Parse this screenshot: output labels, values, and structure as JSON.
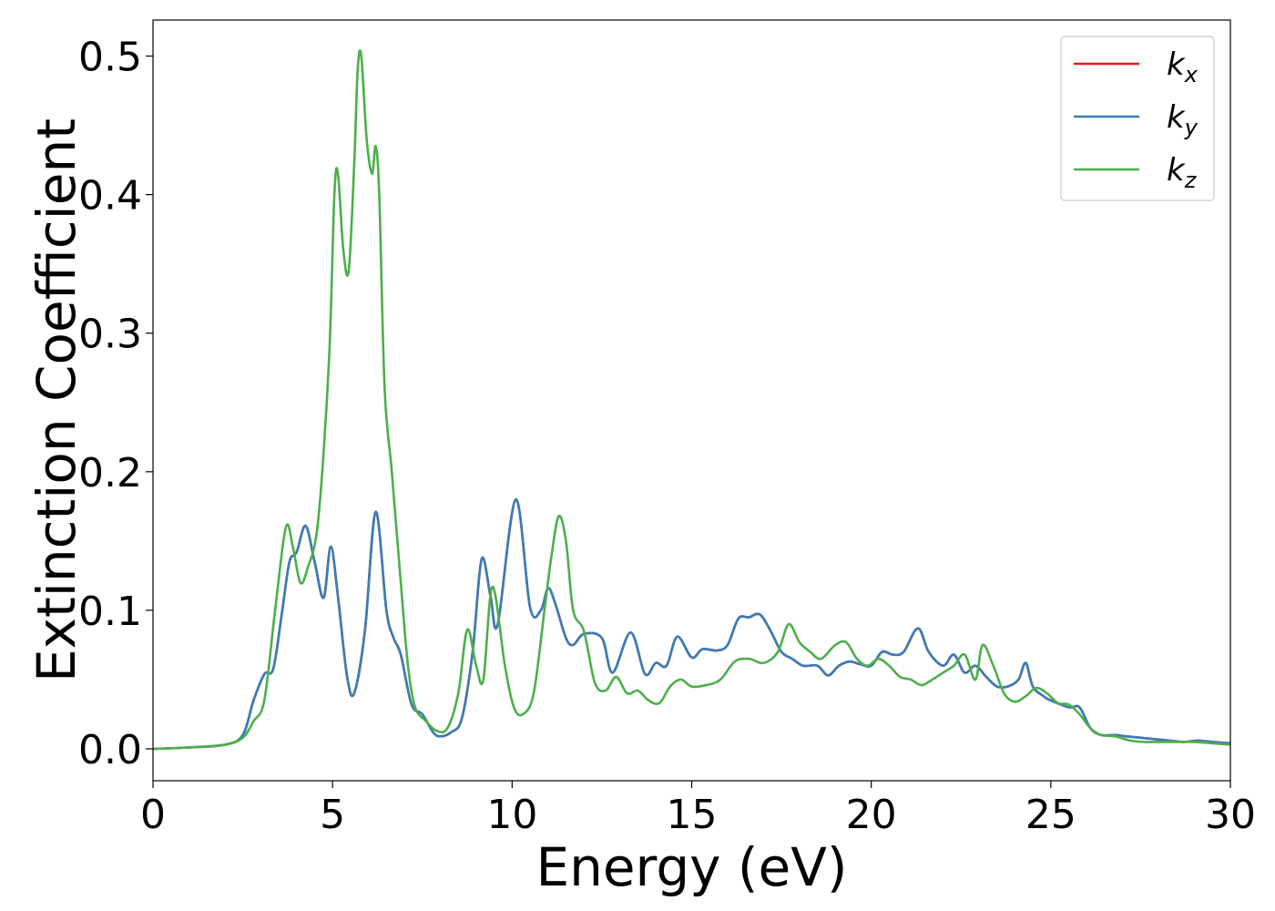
{
  "chart_data": {
    "type": "line",
    "title": "",
    "xlabel": "Energy (eV)",
    "ylabel": "Extinction Coefficient",
    "xlim": [
      0,
      30
    ],
    "ylim": [
      -0.023,
      0.526
    ],
    "xticks": [
      0,
      5,
      10,
      15,
      20,
      25,
      30
    ],
    "xtick_labels": [
      "0",
      "5",
      "10",
      "15",
      "20",
      "25",
      "30"
    ],
    "yticks": [
      0.0,
      0.1,
      0.2,
      0.3,
      0.4,
      0.5
    ],
    "ytick_labels": [
      "0.0",
      "0.1",
      "0.2",
      "0.3",
      "0.4",
      "0.5"
    ],
    "grid": false,
    "legend_position": "top-right",
    "series": [
      {
        "name": "k_x",
        "label_main": "k",
        "label_sub": "x",
        "color": "#e41a1c",
        "x": [
          0,
          1,
          2,
          2.5,
          2.8,
          3.1,
          3.35,
          3.6,
          3.8,
          4.0,
          4.25,
          4.5,
          4.75,
          4.95,
          5.15,
          5.4,
          5.6,
          5.9,
          6.2,
          6.5,
          6.7,
          6.9,
          7.2,
          7.5,
          7.8,
          8.0,
          8.3,
          8.6,
          8.9,
          9.15,
          9.4,
          9.6,
          10.1,
          10.5,
          10.8,
          11.0,
          11.2,
          11.5,
          11.7,
          12.0,
          12.5,
          12.8,
          13.3,
          13.7,
          14.0,
          14.3,
          14.6,
          15.0,
          15.3,
          15.7,
          16.0,
          16.3,
          16.6,
          16.9,
          17.2,
          17.5,
          17.8,
          18.1,
          18.5,
          18.8,
          19.1,
          19.4,
          19.7,
          20.0,
          20.3,
          20.6,
          20.9,
          21.3,
          21.6,
          22.0,
          22.3,
          22.6,
          22.9,
          23.2,
          23.5,
          23.8,
          24.1,
          24.3,
          24.5,
          24.8,
          25.0,
          25.5,
          25.8,
          26.1,
          26.4,
          26.8,
          27.1,
          27.5,
          27.9,
          28.3,
          28.7,
          29.1,
          29.5,
          30
        ],
        "values": [
          0,
          0.001,
          0.003,
          0.01,
          0.035,
          0.054,
          0.058,
          0.1,
          0.135,
          0.142,
          0.161,
          0.135,
          0.109,
          0.146,
          0.11,
          0.053,
          0.04,
          0.085,
          0.171,
          0.1,
          0.08,
          0.068,
          0.032,
          0.025,
          0.012,
          0.009,
          0.012,
          0.022,
          0.07,
          0.137,
          0.11,
          0.09,
          0.18,
          0.102,
          0.1,
          0.116,
          0.105,
          0.08,
          0.075,
          0.083,
          0.08,
          0.055,
          0.084,
          0.054,
          0.062,
          0.06,
          0.081,
          0.066,
          0.072,
          0.071,
          0.075,
          0.094,
          0.095,
          0.097,
          0.085,
          0.07,
          0.065,
          0.06,
          0.06,
          0.053,
          0.06,
          0.063,
          0.061,
          0.06,
          0.07,
          0.068,
          0.07,
          0.087,
          0.07,
          0.06,
          0.068,
          0.055,
          0.06,
          0.052,
          0.045,
          0.045,
          0.05,
          0.062,
          0.045,
          0.038,
          0.035,
          0.03,
          0.03,
          0.015,
          0.01,
          0.01,
          0.009,
          0.008,
          0.007,
          0.006,
          0.005,
          0.006,
          0.005,
          0.004
        ]
      },
      {
        "name": "k_y",
        "label_main": "k",
        "label_sub": "y",
        "color": "#377eb8",
        "x": [
          0,
          1,
          2,
          2.5,
          2.8,
          3.1,
          3.35,
          3.6,
          3.8,
          4.0,
          4.25,
          4.5,
          4.75,
          4.95,
          5.15,
          5.4,
          5.6,
          5.9,
          6.2,
          6.5,
          6.7,
          6.9,
          7.2,
          7.5,
          7.8,
          8.0,
          8.3,
          8.6,
          8.9,
          9.15,
          9.4,
          9.6,
          10.1,
          10.5,
          10.8,
          11.0,
          11.2,
          11.5,
          11.7,
          12.0,
          12.5,
          12.8,
          13.3,
          13.7,
          14.0,
          14.3,
          14.6,
          15.0,
          15.3,
          15.7,
          16.0,
          16.3,
          16.6,
          16.9,
          17.2,
          17.5,
          17.8,
          18.1,
          18.5,
          18.8,
          19.1,
          19.4,
          19.7,
          20.0,
          20.3,
          20.6,
          20.9,
          21.3,
          21.6,
          22.0,
          22.3,
          22.6,
          22.9,
          23.2,
          23.5,
          23.8,
          24.1,
          24.3,
          24.5,
          24.8,
          25.0,
          25.5,
          25.8,
          26.1,
          26.4,
          26.8,
          27.1,
          27.5,
          27.9,
          28.3,
          28.7,
          29.1,
          29.5,
          30
        ],
        "values": [
          0,
          0.001,
          0.003,
          0.01,
          0.035,
          0.054,
          0.058,
          0.1,
          0.135,
          0.142,
          0.161,
          0.135,
          0.109,
          0.146,
          0.11,
          0.053,
          0.04,
          0.085,
          0.171,
          0.1,
          0.08,
          0.068,
          0.032,
          0.025,
          0.012,
          0.009,
          0.012,
          0.022,
          0.07,
          0.137,
          0.11,
          0.09,
          0.18,
          0.102,
          0.1,
          0.116,
          0.105,
          0.08,
          0.075,
          0.083,
          0.08,
          0.055,
          0.084,
          0.054,
          0.062,
          0.06,
          0.081,
          0.066,
          0.072,
          0.071,
          0.075,
          0.094,
          0.095,
          0.097,
          0.085,
          0.07,
          0.065,
          0.06,
          0.06,
          0.053,
          0.06,
          0.063,
          0.061,
          0.06,
          0.07,
          0.068,
          0.07,
          0.087,
          0.07,
          0.06,
          0.068,
          0.055,
          0.06,
          0.052,
          0.045,
          0.045,
          0.05,
          0.062,
          0.045,
          0.038,
          0.035,
          0.03,
          0.03,
          0.015,
          0.01,
          0.01,
          0.009,
          0.008,
          0.007,
          0.006,
          0.005,
          0.006,
          0.005,
          0.004
        ]
      },
      {
        "name": "k_z",
        "label_main": "k",
        "label_sub": "z",
        "color": "#4daf4a",
        "x": [
          0,
          1,
          2,
          2.5,
          2.8,
          3.1,
          3.4,
          3.7,
          3.9,
          4.1,
          4.3,
          4.6,
          4.9,
          5.05,
          5.15,
          5.3,
          5.45,
          5.6,
          5.7,
          5.8,
          5.95,
          6.1,
          6.2,
          6.3,
          6.45,
          6.65,
          6.9,
          7.1,
          7.3,
          7.6,
          7.9,
          8.2,
          8.5,
          8.75,
          9.0,
          9.2,
          9.45,
          9.8,
          10.05,
          10.3,
          10.6,
          10.9,
          11.1,
          11.3,
          11.5,
          11.7,
          12.0,
          12.3,
          12.6,
          12.9,
          13.2,
          13.5,
          13.8,
          14.1,
          14.4,
          14.7,
          15.0,
          15.4,
          15.8,
          16.2,
          16.6,
          17.0,
          17.4,
          17.7,
          18.0,
          18.3,
          18.6,
          19.0,
          19.3,
          19.6,
          19.9,
          20.2,
          20.5,
          20.8,
          21.1,
          21.4,
          21.7,
          22.0,
          22.3,
          22.6,
          22.9,
          23.1,
          23.4,
          23.7,
          24.0,
          24.3,
          24.6,
          24.9,
          25.2,
          25.5,
          25.8,
          26.1,
          26.4,
          26.8,
          27.2,
          27.6,
          28.0,
          28.5,
          29.0,
          29.5,
          30
        ],
        "values": [
          0,
          0.001,
          0.003,
          0.008,
          0.02,
          0.035,
          0.1,
          0.16,
          0.145,
          0.12,
          0.13,
          0.165,
          0.28,
          0.4,
          0.415,
          0.36,
          0.345,
          0.42,
          0.49,
          0.5,
          0.44,
          0.415,
          0.435,
          0.4,
          0.26,
          0.2,
          0.12,
          0.06,
          0.03,
          0.02,
          0.013,
          0.015,
          0.04,
          0.086,
          0.06,
          0.05,
          0.117,
          0.06,
          0.03,
          0.025,
          0.04,
          0.1,
          0.14,
          0.168,
          0.15,
          0.1,
          0.085,
          0.048,
          0.042,
          0.052,
          0.04,
          0.042,
          0.035,
          0.033,
          0.045,
          0.05,
          0.045,
          0.046,
          0.05,
          0.063,
          0.065,
          0.062,
          0.07,
          0.09,
          0.077,
          0.07,
          0.065,
          0.075,
          0.077,
          0.065,
          0.06,
          0.065,
          0.06,
          0.052,
          0.05,
          0.046,
          0.05,
          0.055,
          0.06,
          0.068,
          0.05,
          0.075,
          0.06,
          0.04,
          0.034,
          0.038,
          0.044,
          0.04,
          0.033,
          0.032,
          0.025,
          0.015,
          0.01,
          0.009,
          0.006,
          0.005,
          0.005,
          0.005,
          0.005,
          0.004,
          0.003
        ]
      }
    ]
  }
}
